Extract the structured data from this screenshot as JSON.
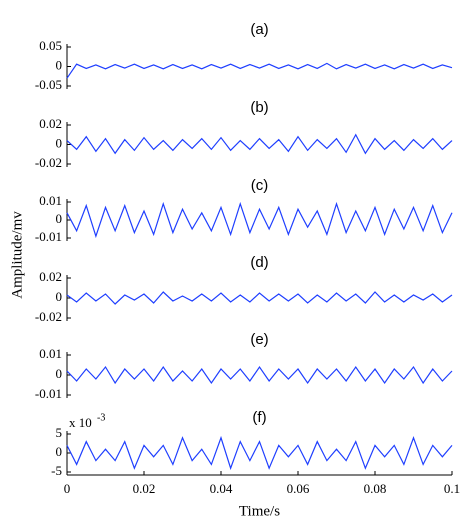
{
  "ylabel": "Amplitude/mv",
  "chart_data": [
    {
      "type": "line",
      "title": "(a)",
      "xlim": [
        0,
        0.1
      ],
      "ylim": [
        -0.05,
        0.05
      ],
      "yticks": [
        -0.05,
        0,
        0.05
      ],
      "x": [
        0,
        0.0025,
        0.005,
        0.0075,
        0.01,
        0.0125,
        0.015,
        0.0175,
        0.02,
        0.0225,
        0.025,
        0.0275,
        0.03,
        0.0325,
        0.035,
        0.0375,
        0.04,
        0.0425,
        0.045,
        0.0475,
        0.05,
        0.0525,
        0.055,
        0.0575,
        0.06,
        0.0625,
        0.065,
        0.0675,
        0.07,
        0.0725,
        0.075,
        0.0775,
        0.08,
        0.0825,
        0.085,
        0.0875,
        0.09,
        0.0925,
        0.095,
        0.0975,
        0.1
      ],
      "series": [
        {
          "color": "#1f3fff",
          "values": [
            -0.03,
            0.006,
            -0.005,
            0.004,
            -0.006,
            0.005,
            -0.004,
            0.006,
            -0.005,
            0.004,
            -0.006,
            0.005,
            -0.005,
            0.004,
            -0.006,
            0.005,
            -0.004,
            0.006,
            -0.005,
            0.005,
            -0.004,
            0.006,
            -0.005,
            0.004,
            -0.006,
            0.005,
            -0.005,
            0.008,
            -0.006,
            0.005,
            -0.004,
            0.006,
            -0.005,
            0.004,
            -0.006,
            0.005,
            -0.004,
            0.006,
            -0.005,
            0.004,
            -0.003
          ]
        }
      ]
    },
    {
      "type": "line",
      "title": "(b)",
      "xlim": [
        0,
        0.1
      ],
      "ylim": [
        -0.02,
        0.02
      ],
      "yticks": [
        -0.02,
        0,
        0.02
      ],
      "x": [
        0,
        0.0025,
        0.005,
        0.0075,
        0.01,
        0.0125,
        0.015,
        0.0175,
        0.02,
        0.0225,
        0.025,
        0.0275,
        0.03,
        0.0325,
        0.035,
        0.0375,
        0.04,
        0.0425,
        0.045,
        0.0475,
        0.05,
        0.0525,
        0.055,
        0.0575,
        0.06,
        0.0625,
        0.065,
        0.0675,
        0.07,
        0.0725,
        0.075,
        0.0775,
        0.08,
        0.0825,
        0.085,
        0.0875,
        0.09,
        0.0925,
        0.095,
        0.0975,
        0.1
      ],
      "series": [
        {
          "color": "#1f3fff",
          "values": [
            0.004,
            -0.005,
            0.008,
            -0.007,
            0.006,
            -0.009,
            0.005,
            -0.006,
            0.007,
            -0.005,
            0.004,
            -0.006,
            0.005,
            -0.004,
            0.006,
            -0.005,
            0.007,
            -0.006,
            0.004,
            -0.005,
            0.006,
            -0.004,
            0.005,
            -0.007,
            0.008,
            -0.006,
            0.005,
            -0.004,
            0.006,
            -0.008,
            0.01,
            -0.009,
            0.006,
            -0.005,
            0.004,
            -0.006,
            0.005,
            -0.004,
            0.006,
            -0.005,
            0.004
          ]
        }
      ]
    },
    {
      "type": "line",
      "title": "(c)",
      "xlim": [
        0,
        0.1
      ],
      "ylim": [
        -0.01,
        0.01
      ],
      "yticks": [
        -0.01,
        0,
        0.01
      ],
      "x": [
        0,
        0.0025,
        0.005,
        0.0075,
        0.01,
        0.0125,
        0.015,
        0.0175,
        0.02,
        0.0225,
        0.025,
        0.0275,
        0.03,
        0.0325,
        0.035,
        0.0375,
        0.04,
        0.0425,
        0.045,
        0.0475,
        0.05,
        0.0525,
        0.055,
        0.0575,
        0.06,
        0.0625,
        0.065,
        0.0675,
        0.07,
        0.0725,
        0.075,
        0.0775,
        0.08,
        0.0825,
        0.085,
        0.0875,
        0.09,
        0.0925,
        0.095,
        0.0975,
        0.1
      ],
      "series": [
        {
          "color": "#1f3fff",
          "values": [
            0.004,
            -0.006,
            0.008,
            -0.009,
            0.007,
            -0.006,
            0.008,
            -0.007,
            0.005,
            -0.008,
            0.009,
            -0.007,
            0.006,
            -0.005,
            0.004,
            -0.006,
            0.007,
            -0.008,
            0.009,
            -0.007,
            0.006,
            -0.005,
            0.007,
            -0.008,
            0.006,
            -0.004,
            0.005,
            -0.008,
            0.009,
            -0.007,
            0.005,
            -0.006,
            0.007,
            -0.008,
            0.006,
            -0.005,
            0.007,
            -0.006,
            0.008,
            -0.007,
            0.004
          ]
        }
      ]
    },
    {
      "type": "line",
      "title": "(d)",
      "xlim": [
        0,
        0.1
      ],
      "ylim": [
        -0.02,
        0.02
      ],
      "yticks": [
        -0.02,
        0,
        0.02
      ],
      "x": [
        0,
        0.0025,
        0.005,
        0.0075,
        0.01,
        0.0125,
        0.015,
        0.0175,
        0.02,
        0.0225,
        0.025,
        0.0275,
        0.03,
        0.0325,
        0.035,
        0.0375,
        0.04,
        0.0425,
        0.045,
        0.0475,
        0.05,
        0.0525,
        0.055,
        0.0575,
        0.06,
        0.0625,
        0.065,
        0.0675,
        0.07,
        0.0725,
        0.075,
        0.0775,
        0.08,
        0.0825,
        0.085,
        0.0875,
        0.09,
        0.0925,
        0.095,
        0.0975,
        0.1
      ],
      "series": [
        {
          "color": "#1f3fff",
          "values": [
            0.003,
            -0.004,
            0.005,
            -0.003,
            0.004,
            -0.006,
            0.003,
            -0.002,
            0.004,
            -0.005,
            0.006,
            -0.003,
            0.002,
            -0.003,
            0.004,
            -0.003,
            0.005,
            -0.004,
            0.003,
            -0.004,
            0.005,
            -0.003,
            0.004,
            -0.003,
            0.004,
            -0.005,
            0.003,
            -0.004,
            0.005,
            -0.003,
            0.004,
            -0.005,
            0.006,
            -0.004,
            0.003,
            -0.004,
            0.003,
            -0.002,
            0.004,
            -0.004,
            0.003
          ]
        }
      ]
    },
    {
      "type": "line",
      "title": "(e)",
      "xlim": [
        0,
        0.1
      ],
      "ylim": [
        -0.01,
        0.01
      ],
      "yticks": [
        -0.01,
        0,
        0.01
      ],
      "x": [
        0,
        0.0025,
        0.005,
        0.0075,
        0.01,
        0.0125,
        0.015,
        0.0175,
        0.02,
        0.0225,
        0.025,
        0.0275,
        0.03,
        0.0325,
        0.035,
        0.0375,
        0.04,
        0.0425,
        0.045,
        0.0475,
        0.05,
        0.0525,
        0.055,
        0.0575,
        0.06,
        0.0625,
        0.065,
        0.0675,
        0.07,
        0.0725,
        0.075,
        0.0775,
        0.08,
        0.0825,
        0.085,
        0.0875,
        0.09,
        0.0925,
        0.095,
        0.0975,
        0.1
      ],
      "series": [
        {
          "color": "#1f3fff",
          "values": [
            0.002,
            -0.003,
            0.003,
            -0.002,
            0.004,
            -0.004,
            0.003,
            -0.002,
            0.003,
            -0.003,
            0.004,
            -0.003,
            0.002,
            -0.003,
            0.003,
            -0.004,
            0.003,
            -0.002,
            0.003,
            -0.003,
            0.004,
            -0.003,
            0.003,
            -0.002,
            0.003,
            -0.004,
            0.003,
            -0.002,
            0.003,
            -0.003,
            0.004,
            -0.003,
            0.003,
            -0.004,
            0.003,
            -0.002,
            0.004,
            -0.004,
            0.003,
            -0.003,
            0.002
          ]
        }
      ]
    },
    {
      "type": "line",
      "title": "(f)",
      "xlabel": "Time/s",
      "y_exponent": {
        "base": "x 10",
        "power": "-3"
      },
      "xlim": [
        0,
        0.1
      ],
      "xticks": [
        0,
        0.02,
        0.04,
        0.06,
        0.08,
        0.1
      ],
      "ylim": [
        -5,
        5
      ],
      "yticks": [
        -5,
        0,
        5
      ],
      "x": [
        0,
        0.0025,
        0.005,
        0.0075,
        0.01,
        0.0125,
        0.015,
        0.0175,
        0.02,
        0.0225,
        0.025,
        0.0275,
        0.03,
        0.0325,
        0.035,
        0.0375,
        0.04,
        0.0425,
        0.045,
        0.0475,
        0.05,
        0.0525,
        0.055,
        0.0575,
        0.06,
        0.0625,
        0.065,
        0.0675,
        0.07,
        0.0725,
        0.075,
        0.0775,
        0.08,
        0.0825,
        0.085,
        0.0875,
        0.09,
        0.0925,
        0.095,
        0.0975,
        0.1
      ],
      "series": [
        {
          "color": "#1f3fff",
          "values": [
            2,
            -3,
            3,
            -2,
            1,
            -2,
            3,
            -4,
            2,
            -1,
            2,
            -3,
            4,
            -2,
            1,
            -3,
            4,
            -4,
            3,
            -2,
            3,
            -4,
            2,
            -1,
            2,
            -3,
            3,
            -2,
            1,
            -2,
            3,
            -4,
            2,
            -1,
            2,
            -3,
            4,
            -3,
            2,
            -1,
            2
          ]
        }
      ]
    }
  ]
}
